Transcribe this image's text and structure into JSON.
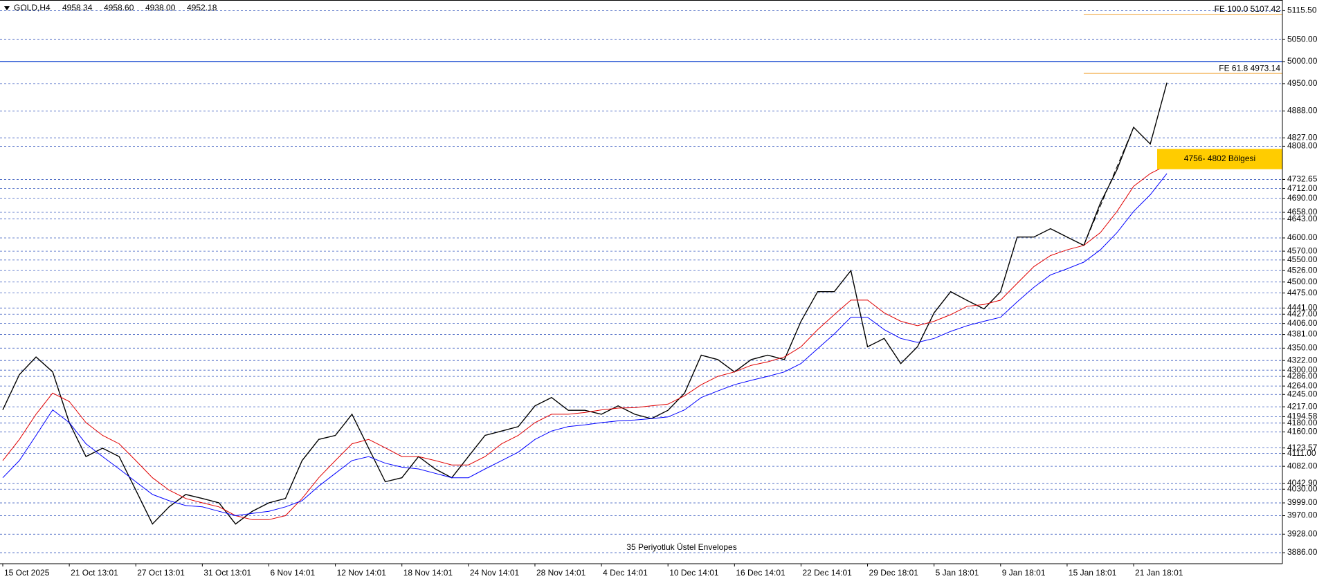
{
  "chart_data": {
    "type": "line",
    "title": "GOLD,H4",
    "header_values": [
      "4958.34",
      "4958.60",
      "4938.00",
      "4952.18"
    ],
    "categories": [
      "15 Oct 2025",
      null,
      null,
      null,
      "21 Oct 13:01",
      null,
      null,
      null,
      "27 Oct 13:01",
      null,
      null,
      null,
      "31 Oct 13:01",
      null,
      null,
      null,
      "6 Nov 14:01",
      null,
      null,
      null,
      "12 Nov 14:01",
      null,
      null,
      null,
      "18 Nov 14:01",
      null,
      null,
      null,
      "24 Nov 14:01",
      null,
      null,
      null,
      "28 Nov 14:01",
      null,
      null,
      null,
      "4 Dec 14:01",
      null,
      null,
      null,
      "10 Dec 14:01",
      null,
      null,
      null,
      "16 Dec 14:01",
      null,
      null,
      null,
      "22 Dec 14:01",
      null,
      null,
      null,
      "29 Dec 18:01",
      null,
      null,
      null,
      "5 Jan 18:01",
      null,
      null,
      null,
      "9 Jan 18:01",
      null,
      null,
      null,
      "15 Jan 18:01",
      null,
      null,
      null,
      "21 Jan 18:01",
      null,
      null
    ],
    "series": [
      {
        "color": "#000000",
        "values": [
          4210,
          4290,
          4330,
          4296,
          4181,
          4104,
          4123,
          4104,
          4028,
          3951,
          3990,
          4018,
          4009,
          3999,
          3951,
          3980,
          3999,
          4009,
          4095,
          4143,
          4152,
          4200,
          4123,
          4047,
          4056,
          4104,
          4076,
          4056,
          4104,
          4152,
          4162,
          4172,
          4219,
          4238,
          4209,
          4209,
          4200,
          4219,
          4200,
          4190,
          4209,
          4248,
          4334,
          4324,
          4296,
          4324,
          4334,
          4324,
          4411,
          4478,
          4478,
          4526,
          4353,
          4372,
          4315,
          4353,
          4430,
          4478,
          4458,
          4439,
          4478,
          4602,
          4602,
          4621,
          4602,
          4583,
          4679,
          4755,
          4851,
          4813,
          4952
        ]
      },
      {
        "color": "#e00000",
        "values": [
          4095,
          4143,
          4200,
          4248,
          4229,
          4181,
          4152,
          4133,
          4095,
          4056,
          4028,
          4009,
          3999,
          3990,
          3970,
          3961,
          3961,
          3970,
          4009,
          4056,
          4095,
          4133,
          4143,
          4124,
          4104,
          4104,
          4095,
          4085,
          4085,
          4104,
          4133,
          4152,
          4181,
          4200,
          4200,
          4204,
          4210,
          4214,
          4215,
          4219,
          4223,
          4242,
          4267,
          4286,
          4296,
          4311,
          4319,
          4330,
          4353,
          4392,
          4426,
          4459,
          4459,
          4430,
          4411,
          4401,
          4411,
          4426,
          4445,
          4449,
          4459,
          4497,
          4535,
          4560,
          4573,
          4583,
          4612,
          4660,
          4717,
          4746,
          4765
        ]
      },
      {
        "color": "#0000ff",
        "values": [
          4056,
          4095,
          4152,
          4210,
          4181,
          4133,
          4104,
          4076,
          4047,
          4018,
          4004,
          3993,
          3990,
          3980,
          3970,
          3975,
          3980,
          3990,
          4004,
          4037,
          4066,
          4095,
          4104,
          4089,
          4080,
          4076,
          4066,
          4056,
          4056,
          4076,
          4095,
          4114,
          4143,
          4162,
          4172,
          4176,
          4181,
          4185,
          4187,
          4190,
          4194,
          4210,
          4238,
          4253,
          4267,
          4277,
          4286,
          4296,
          4315,
          4349,
          4382,
          4420,
          4420,
          4392,
          4372,
          4363,
          4372,
          4388,
          4401,
          4411,
          4420,
          4455,
          4488,
          4516,
          4530,
          4545,
          4573,
          4612,
          4660,
          4698,
          4746
        ]
      }
    ],
    "ylim": [
      3861,
      5135
    ],
    "yticks": [
      {
        "value": 5115.5,
        "label": "5115.50"
      },
      {
        "value": 5050,
        "label": "5050.00"
      },
      {
        "value": 5000,
        "label": "5000.00"
      },
      {
        "value": 4950,
        "label": "4950.00"
      },
      {
        "value": 4888,
        "label": "4888.00"
      },
      {
        "value": 4827,
        "label": "4827.00"
      },
      {
        "value": 4808,
        "label": "4808.00"
      },
      {
        "value": 4732.65,
        "label": "4732.65"
      },
      {
        "value": 4712,
        "label": "4712.00"
      },
      {
        "value": 4690,
        "label": "4690.00"
      },
      {
        "value": 4658,
        "label": "4658.00"
      },
      {
        "value": 4643,
        "label": "4643.00"
      },
      {
        "value": 4600,
        "label": "4600.00"
      },
      {
        "value": 4570,
        "label": "4570.00"
      },
      {
        "value": 4550,
        "label": "4550.00"
      },
      {
        "value": 4526,
        "label": "4526.00"
      },
      {
        "value": 4500,
        "label": "4500.00"
      },
      {
        "value": 4475,
        "label": "4475.00"
      },
      {
        "value": 4441,
        "label": "4441.00"
      },
      {
        "value": 4427,
        "label": "4427.00"
      },
      {
        "value": 4406,
        "label": "4406.00"
      },
      {
        "value": 4381,
        "label": "4381.00"
      },
      {
        "value": 4350,
        "label": "4350.00"
      },
      {
        "value": 4322,
        "label": "4322.00"
      },
      {
        "value": 4300,
        "label": "4300.00"
      },
      {
        "value": 4286,
        "label": "4286.00"
      },
      {
        "value": 4264,
        "label": "4264.00"
      },
      {
        "value": 4245,
        "label": "4245.00"
      },
      {
        "value": 4217,
        "label": "4217.00"
      },
      {
        "value": 4194.58,
        "label": "4194.58"
      },
      {
        "value": 4180,
        "label": "4180.00"
      },
      {
        "value": 4160,
        "label": "4160.00"
      },
      {
        "value": 4123.57,
        "label": "4123.57"
      },
      {
        "value": 4111,
        "label": "4111.00"
      },
      {
        "value": 4082,
        "label": "4082.00"
      },
      {
        "value": 4042.9,
        "label": "4042.90"
      },
      {
        "value": 4030,
        "label": "4030.00"
      },
      {
        "value": 3999,
        "label": "3999.00"
      },
      {
        "value": 3970,
        "label": "3970.00"
      },
      {
        "value": 3928,
        "label": "3928.00"
      },
      {
        "value": 3886,
        "label": "3886.00"
      }
    ],
    "grid": true,
    "level_line": {
      "value": 5000,
      "color": "#1f4fd1"
    },
    "fibo_lines": [
      {
        "label": "FE 100.0 5107.42",
        "value": 5107.42
      },
      {
        "label": "FE 61.8 4973.14",
        "value": 4973.14
      }
    ],
    "fibo_color": "#f0a030",
    "zone": {
      "text": "4756- 4802 Bölgesi",
      "low": 4756,
      "high": 4802,
      "color": "#ffcc00"
    },
    "indicator_label": "35 Periyotluk Üstel Envelopes"
  }
}
